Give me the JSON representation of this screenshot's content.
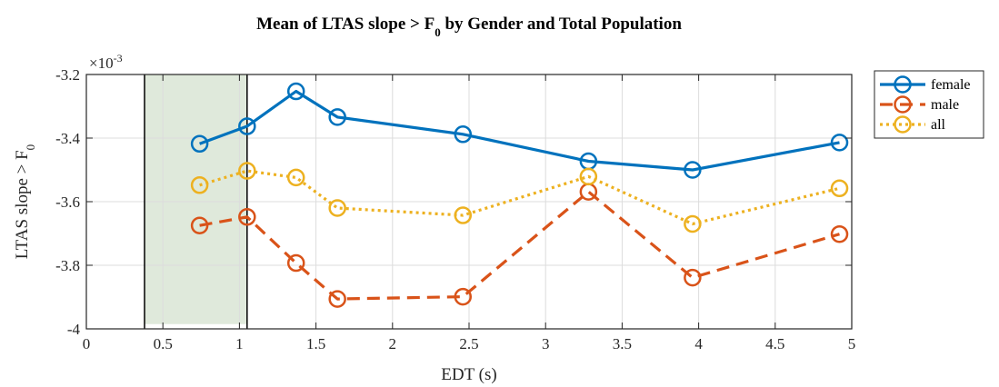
{
  "chart_data": {
    "type": "line",
    "title": "Mean of LTAS slope > F",
    "title_subscript": "0",
    "title_suffix": " by Gender and Total Population",
    "xlabel": "EDT (s)",
    "ylabel": "LTAS slope > F",
    "ylabel_subscript": "0",
    "y_exponent_label": "×10",
    "y_exponent_power": "-3",
    "xlim": [
      0,
      5
    ],
    "ylim": [
      -4,
      -3.2
    ],
    "xticks": [
      0,
      0.5,
      1,
      1.5,
      2,
      2.5,
      3,
      3.5,
      4,
      4.5,
      5
    ],
    "xtick_labels": [
      "0",
      "0.5",
      "1",
      "1.5",
      "2",
      "2.5",
      "3",
      "3.5",
      "4",
      "4.5",
      "5"
    ],
    "yticks": [
      -4,
      -3.8,
      -3.6,
      -3.4,
      -3.2
    ],
    "ytick_labels": [
      "-4",
      "-3.8",
      "-3.6",
      "-3.4",
      "-3.2"
    ],
    "grid": true,
    "legend_position": "outside-top-right",
    "shaded_region": {
      "x": [
        0.38,
        1.05
      ],
      "y": [
        -3.985,
        -3.2
      ],
      "color": "#dfe9db"
    },
    "vertical_lines": [
      0.38,
      1.05
    ],
    "x": [
      0.74,
      1.05,
      1.37,
      1.64,
      2.46,
      3.28,
      3.96,
      4.92
    ],
    "series": [
      {
        "name": "female",
        "color": "#0072BD",
        "dash": "",
        "values": [
          -3.418,
          -3.363,
          -3.253,
          -3.334,
          -3.388,
          -3.473,
          -3.5,
          -3.414
        ]
      },
      {
        "name": "male",
        "color": "#D95319",
        "dash": "14,8",
        "values": [
          -3.675,
          -3.648,
          -3.793,
          -3.906,
          -3.899,
          -3.569,
          -3.839,
          -3.702
        ]
      },
      {
        "name": "all",
        "color": "#EDB120",
        "dash": "3,4",
        "values": [
          -3.548,
          -3.503,
          -3.524,
          -3.62,
          -3.643,
          -3.521,
          -3.67,
          -3.558
        ]
      }
    ]
  }
}
